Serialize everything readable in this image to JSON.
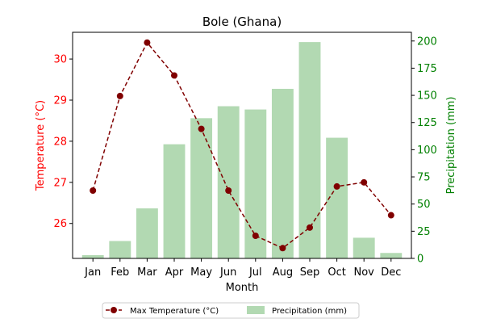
{
  "chart_data": {
    "type": "bar+line",
    "title": "Bole (Ghana)",
    "xlabel": "Month",
    "categories": [
      "Jan",
      "Feb",
      "Mar",
      "Apr",
      "May",
      "Jun",
      "Jul",
      "Aug",
      "Sep",
      "Oct",
      "Nov",
      "Dec"
    ],
    "left_axis": {
      "label": "Temperature (°C)",
      "color": "#ff0000",
      "ylim": [
        25.15,
        30.65
      ],
      "ticks": [
        26,
        27,
        28,
        29,
        30
      ]
    },
    "right_axis": {
      "label": "Precipitation (mm)",
      "color": "#008000",
      "ylim": [
        0,
        208
      ],
      "ticks": [
        0,
        25,
        50,
        75,
        100,
        125,
        150,
        175,
        200
      ]
    },
    "series": [
      {
        "name": "Max Temperature (°C)",
        "type": "line",
        "axis": "left",
        "color": "#800000",
        "style": "dashed",
        "marker": "circle",
        "values": [
          26.8,
          29.1,
          30.4,
          29.6,
          28.3,
          26.8,
          25.7,
          25.4,
          25.9,
          26.9,
          27.0,
          26.2
        ]
      },
      {
        "name": "Precipitation (mm)",
        "type": "bar",
        "axis": "right",
        "color": "#b2d9b2",
        "values": [
          3,
          16,
          46,
          105,
          129,
          140,
          137,
          156,
          199,
          111,
          19,
          5
        ]
      }
    ],
    "legend": {
      "placement": "bottom-center"
    },
    "grid": false
  }
}
